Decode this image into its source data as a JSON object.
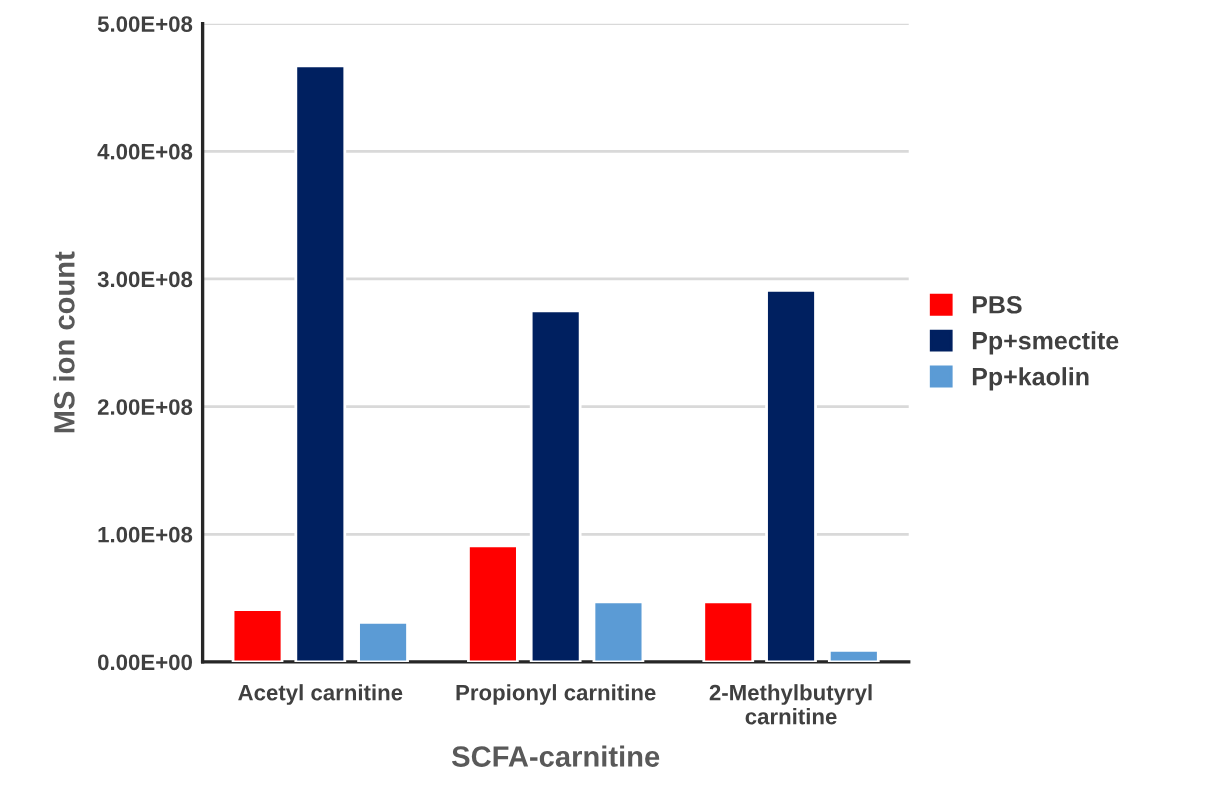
{
  "chart_data": {
    "type": "bar",
    "xlabel": "SCFA-carnitine",
    "ylabel": "MS ion count",
    "categories": [
      "Acetyl carnitine",
      "Propionyl carnitine",
      "2-Methylbutyryl\ncarnitine"
    ],
    "series": [
      {
        "name": "PBS",
        "color": "#ff0000",
        "values": [
          41000000,
          91000000,
          47000000
        ]
      },
      {
        "name": "Pp+smectite",
        "color": "#002060",
        "values": [
          467000000,
          275000000,
          291000000
        ]
      },
      {
        "name": "Pp+kaolin",
        "color": "#5b9bd5",
        "values": [
          31000000,
          47000000,
          9000000
        ]
      }
    ],
    "ylim": [
      0,
      500000000
    ],
    "yticks": [
      {
        "value": 0,
        "label": "0.00E+00"
      },
      {
        "value": 100000000,
        "label": "1.00E+08"
      },
      {
        "value": 200000000,
        "label": "2.00E+08"
      },
      {
        "value": 300000000,
        "label": "3.00E+08"
      },
      {
        "value": 400000000,
        "label": "4.00E+08"
      },
      {
        "value": 500000000,
        "label": "5.00E+08"
      }
    ],
    "grid": "y",
    "legend": "right"
  }
}
